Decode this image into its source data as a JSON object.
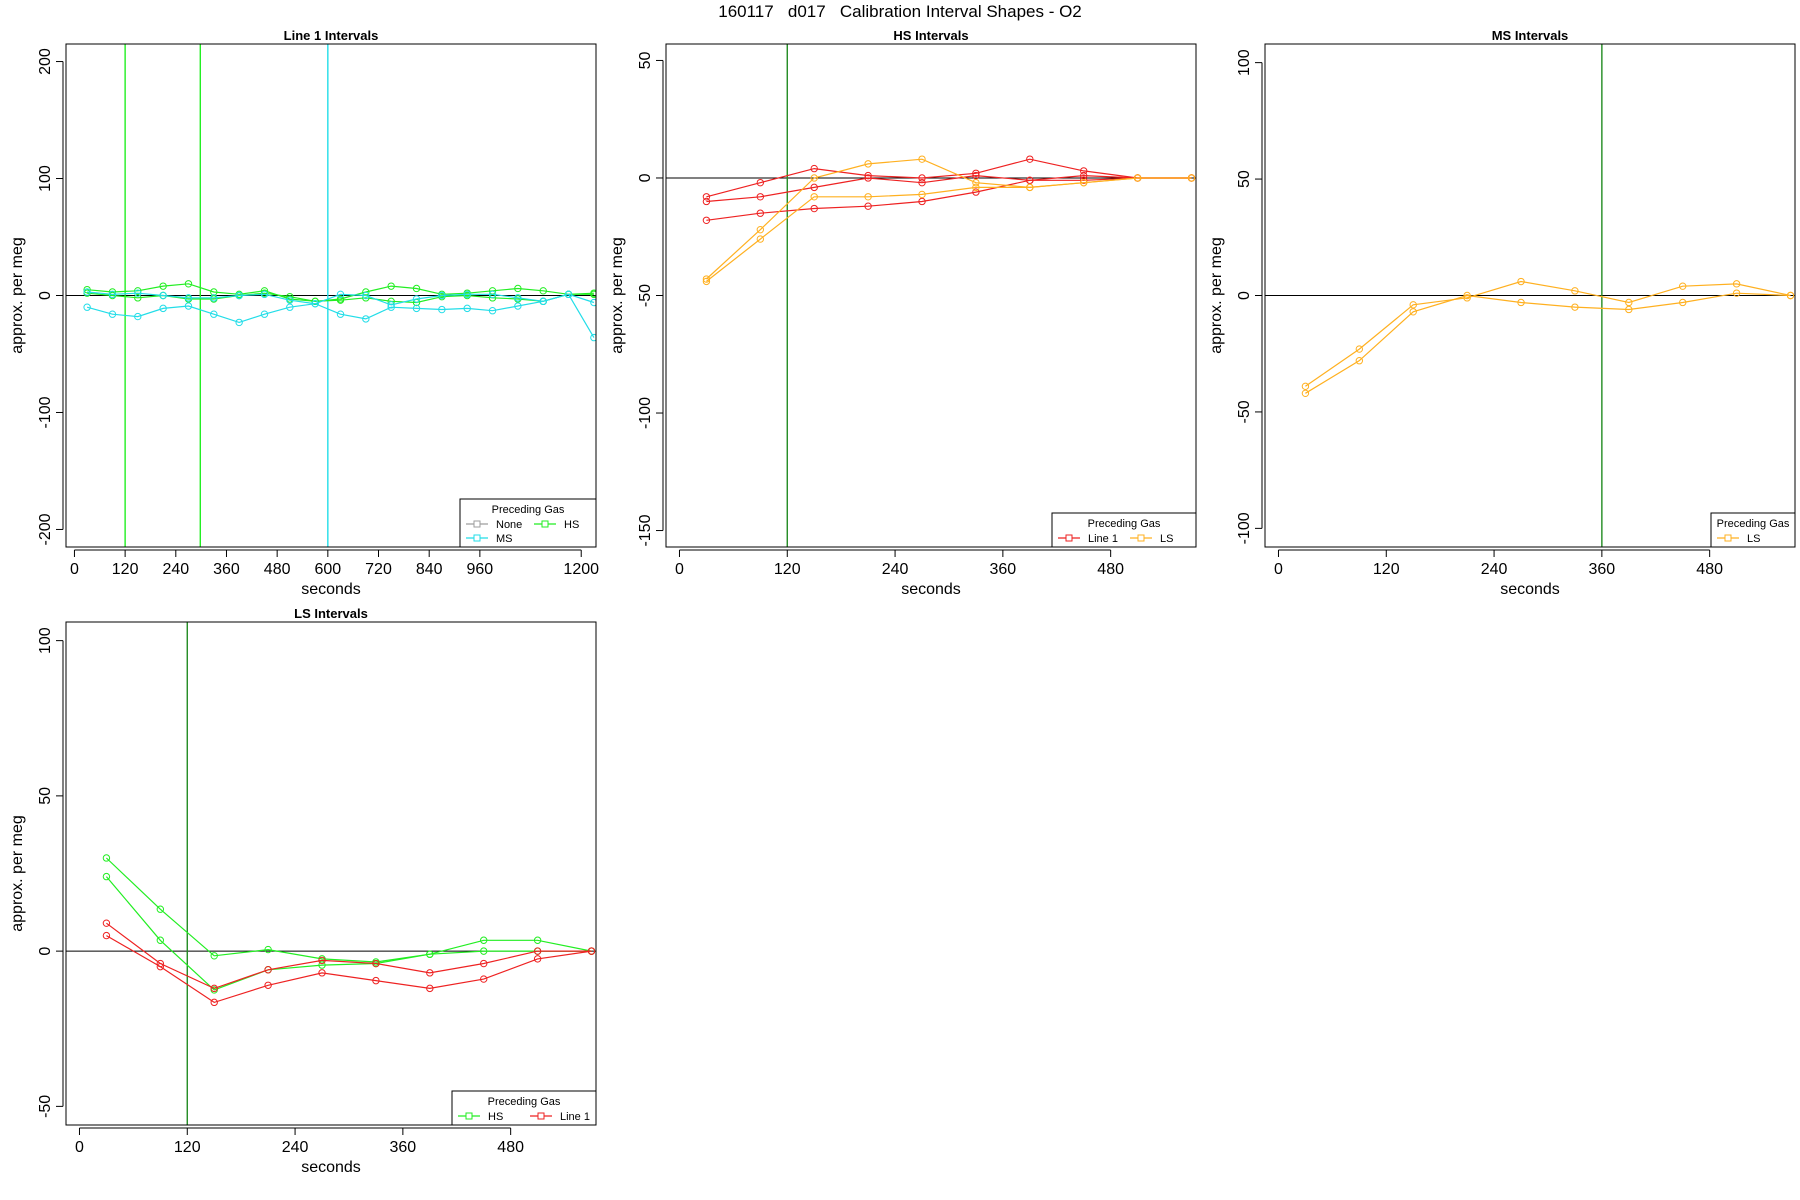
{
  "figure_title": "160117   d017   Calibration Interval Shapes - O2",
  "colors": {
    "None": "#9e9e9e",
    "HS": "#22ee22",
    "MS": "#22dde8",
    "LS": "#ffb020",
    "Line 1": "#ee2222",
    "refline": "#228b22",
    "axis": "#000000"
  },
  "chart_data": [
    {
      "type": "line",
      "title": "Line 1 Intervals",
      "xlabel": "seconds",
      "ylabel": "approx. per meg",
      "xlim": [
        -20,
        1235
      ],
      "ylim": [
        -215,
        215
      ],
      "xticks": [
        0,
        120,
        240,
        360,
        480,
        600,
        720,
        840,
        960,
        1200
      ],
      "yticks": [
        -200,
        -100,
        0,
        100,
        200
      ],
      "hline": 0,
      "vlines": [
        {
          "x": 120,
          "color": "HS"
        },
        {
          "x": 298,
          "color": "HS"
        },
        {
          "x": 600,
          "color": "MS"
        }
      ],
      "legend": {
        "title": "Preceding Gas",
        "position": "bottom-right",
        "entries": [
          "None",
          "HS",
          "MS"
        ]
      },
      "series": [
        {
          "name": "HS",
          "x": [
            30,
            90,
            150,
            210,
            270,
            330,
            390,
            450,
            510,
            570,
            630,
            690,
            750,
            810,
            870,
            930,
            990,
            1050,
            1110,
            1170,
            1230
          ],
          "values": [
            5,
            3,
            4,
            8,
            10,
            3,
            1,
            4,
            -3,
            -5,
            -3,
            3,
            8,
            6,
            1,
            2,
            4,
            6,
            4,
            1,
            1
          ]
        },
        {
          "name": "HS",
          "x": [
            30,
            90,
            150,
            210,
            270,
            330,
            390,
            450,
            510,
            570,
            630,
            690,
            750,
            810,
            870,
            930,
            990,
            1050,
            1110,
            1170,
            1230
          ],
          "values": [
            2,
            0,
            -2,
            0,
            -3,
            -3,
            0,
            2,
            -1,
            -5,
            -4,
            -2,
            -5,
            -6,
            -1,
            0,
            -2,
            -3,
            -5,
            1,
            2
          ]
        },
        {
          "name": "MS",
          "x": [
            30,
            90,
            150,
            210,
            270,
            330,
            390,
            450,
            510,
            570,
            630,
            690,
            750,
            810,
            870,
            930,
            990,
            1050,
            1110,
            1170,
            1230
          ],
          "values": [
            -10,
            -16,
            -18,
            -11,
            -9,
            -16,
            -23,
            -16,
            -10,
            -7,
            -16,
            -20,
            -10,
            -11,
            -12,
            -11,
            -13,
            -9,
            -5,
            1,
            -36
          ]
        },
        {
          "name": "MS",
          "x": [
            30,
            90,
            150,
            210,
            270,
            330,
            390,
            450,
            510,
            570,
            630,
            690,
            750,
            810,
            870,
            930,
            990,
            1050,
            1110,
            1170,
            1230
          ],
          "values": [
            3,
            1,
            2,
            0,
            -2,
            -2,
            0,
            1,
            -4,
            -7,
            1,
            0,
            -8,
            -3,
            0,
            1,
            1,
            -2,
            -5,
            1,
            -6
          ]
        }
      ]
    },
    {
      "type": "line",
      "title": "HS Intervals",
      "xlabel": "seconds",
      "ylabel": "approx. per meg",
      "xlim": [
        -15,
        575
      ],
      "ylim": [
        -157,
        57
      ],
      "xticks": [
        0,
        120,
        240,
        360,
        480
      ],
      "yticks": [
        -150,
        -100,
        -50,
        0,
        50
      ],
      "hline": 0,
      "vlines": [
        {
          "x": 120,
          "color": "refline"
        }
      ],
      "legend": {
        "title": "Preceding Gas",
        "position": "bottom-right",
        "entries": [
          "Line 1",
          "LS"
        ]
      },
      "series": [
        {
          "name": "Line 1",
          "x": [
            30,
            90,
            150,
            210,
            270,
            330,
            390,
            450,
            510,
            570
          ],
          "values": [
            -8,
            -2,
            4,
            1,
            0,
            2,
            8,
            3,
            0,
            0
          ]
        },
        {
          "name": "Line 1",
          "x": [
            30,
            90,
            150,
            210,
            270,
            330,
            390,
            450,
            510,
            570
          ],
          "values": [
            -10,
            -8,
            -4,
            0,
            -2,
            1,
            -1,
            1,
            0,
            0
          ]
        },
        {
          "name": "Line 1",
          "x": [
            30,
            90,
            150,
            210,
            270,
            330,
            390,
            450,
            510,
            570
          ],
          "values": [
            -18,
            -15,
            -13,
            -12,
            -10,
            -6,
            -1,
            -1,
            0,
            0
          ]
        },
        {
          "name": "LS",
          "x": [
            30,
            90,
            150,
            210,
            270,
            330,
            390,
            450,
            510,
            570
          ],
          "values": [
            -43,
            -22,
            0,
            6,
            8,
            -2,
            -4,
            -2,
            0,
            0
          ]
        },
        {
          "name": "LS",
          "x": [
            30,
            90,
            150,
            210,
            270,
            330,
            390,
            450,
            510,
            570
          ],
          "values": [
            -44,
            -26,
            -8,
            -8,
            -7,
            -4,
            -4,
            -2,
            0,
            0
          ]
        }
      ]
    },
    {
      "type": "line",
      "title": "MS Intervals",
      "xlabel": "seconds",
      "ylabel": "approx. per meg",
      "xlim": [
        -15,
        575
      ],
      "ylim": [
        -108,
        108
      ],
      "xticks": [
        0,
        120,
        240,
        360,
        480
      ],
      "yticks": [
        -100,
        -50,
        0,
        50,
        100
      ],
      "hline": 0,
      "vlines": [
        {
          "x": 360,
          "color": "refline"
        }
      ],
      "legend": {
        "title": "Preceding Gas",
        "position": "bottom-right",
        "entries": [
          "LS"
        ]
      },
      "series": [
        {
          "name": "LS",
          "x": [
            30,
            90,
            150,
            210,
            270,
            330,
            390,
            450,
            510,
            570
          ],
          "values": [
            -39,
            -23,
            -4,
            -1,
            6,
            2,
            -3,
            4,
            5,
            0
          ]
        },
        {
          "name": "LS",
          "x": [
            30,
            90,
            150,
            210,
            270,
            330,
            390,
            450,
            510,
            570
          ],
          "values": [
            -42,
            -28,
            -7,
            0,
            -3,
            -5,
            -6,
            -3,
            1,
            0
          ]
        }
      ]
    },
    {
      "type": "line",
      "title": "LS Intervals",
      "xlabel": "seconds",
      "ylabel": "approx. per meg",
      "xlim": [
        -15,
        575
      ],
      "ylim": [
        -56,
        106
      ],
      "xticks": [
        0,
        120,
        240,
        360,
        480
      ],
      "yticks": [
        -50,
        0,
        50,
        100
      ],
      "hline": 0,
      "vlines": [
        {
          "x": 120,
          "color": "refline"
        }
      ],
      "legend": {
        "title": "Preceding Gas",
        "position": "bottom-right",
        "entries": [
          "HS",
          "Line 1"
        ]
      },
      "series": [
        {
          "name": "HS",
          "x": [
            30,
            90,
            150,
            210,
            270,
            330,
            390,
            450,
            510,
            570
          ],
          "values": [
            30,
            13.5,
            -1.5,
            0.5,
            -2.5,
            -3.5,
            -1,
            3.5,
            3.5,
            0
          ]
        },
        {
          "name": "HS",
          "x": [
            30,
            90,
            150,
            210,
            270,
            330,
            390,
            450,
            510,
            570
          ],
          "values": [
            24,
            3.5,
            -12.5,
            -6,
            -4.5,
            -4,
            -1,
            0,
            0,
            0
          ]
        },
        {
          "name": "Line 1",
          "x": [
            30,
            90,
            150,
            210,
            270,
            330,
            390,
            450,
            510,
            570
          ],
          "values": [
            9,
            -4,
            -12,
            -6,
            -3,
            -4,
            -7,
            -4,
            0,
            0
          ]
        },
        {
          "name": "Line 1",
          "x": [
            30,
            90,
            150,
            210,
            270,
            330,
            390,
            450,
            510,
            570
          ],
          "values": [
            5,
            -5,
            -16.5,
            -11,
            -7,
            -9.5,
            -12,
            -9,
            -2.5,
            0
          ]
        }
      ]
    }
  ]
}
